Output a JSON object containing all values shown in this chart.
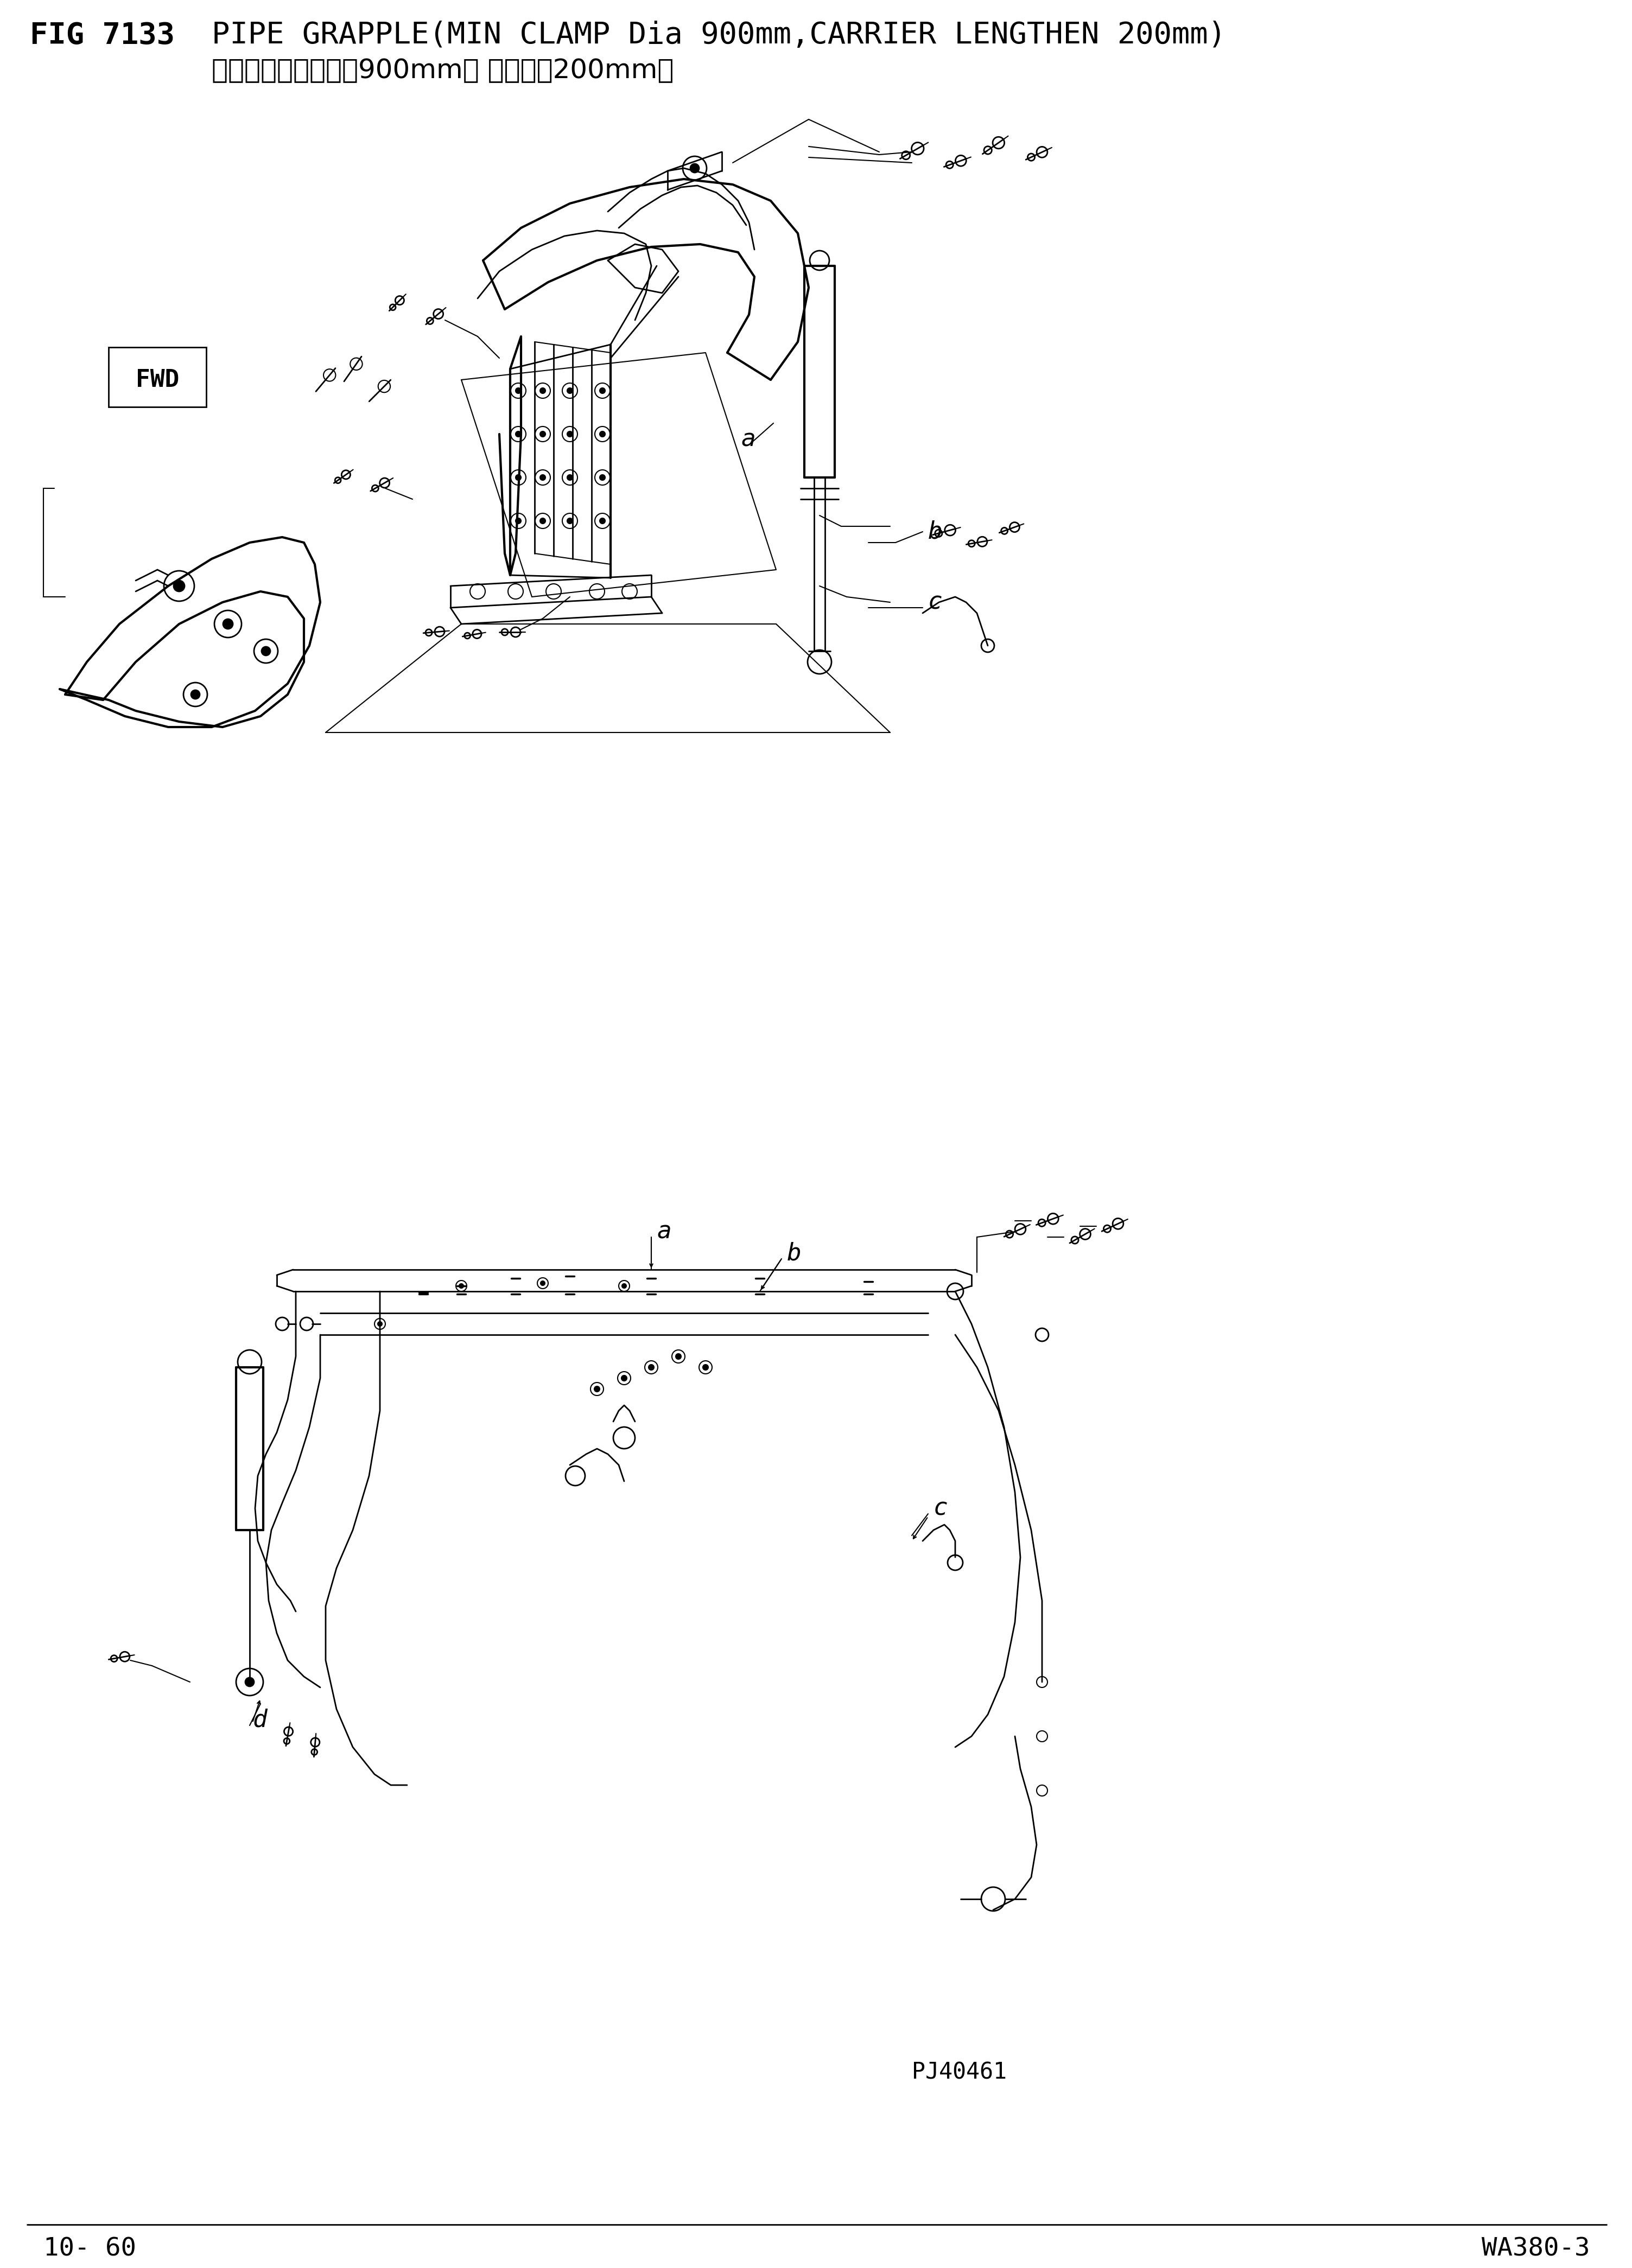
{
  "fig_number": "FIG 7133",
  "title_en": "PIPE GRAPPLE(MIN CLAMP Dia 900mm,CARRIER LENGTHEN 200mm)",
  "title_cn": "鈢管抓具（包容直径900mm， 下爪加长200mm）",
  "page_left": "10- 60",
  "page_right": "WA380-3",
  "drawing_id": "PJ40461",
  "bg": "#ffffff",
  "lc": "#000000",
  "title_fs": 40,
  "sub_fs": 36,
  "footer_fs": 34,
  "label_fs": 32,
  "small_fs": 28
}
